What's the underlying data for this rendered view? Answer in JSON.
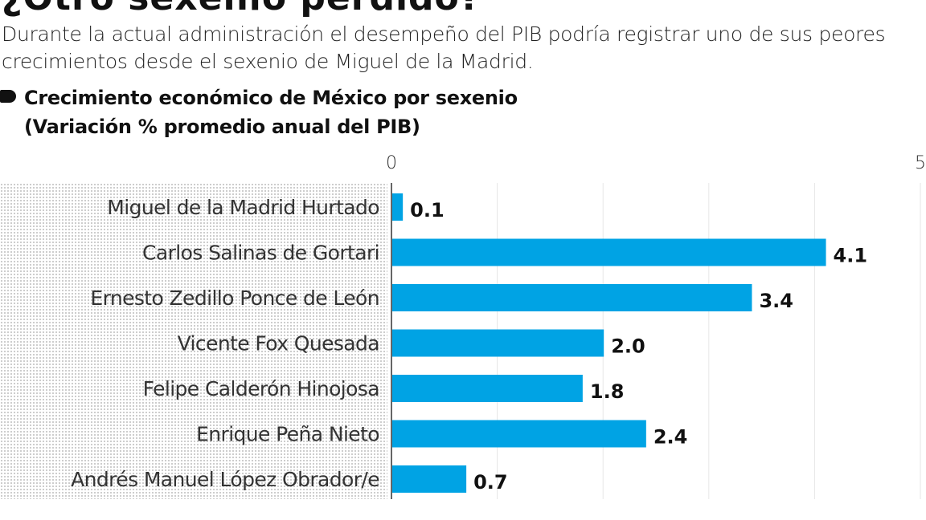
{
  "header": {
    "title": "¿Otro sexenio perdido?",
    "subtitle": "Durante la actual administración el desempeño del PIB podría registrar uno de sus peores crecimientos desde el sexenio de Miguel de la Madrid."
  },
  "chart_data": {
    "type": "bar",
    "orientation": "horizontal",
    "title": "Crecimiento económico de México por sexenio",
    "subtitle": "(Variación % promedio anual del PIB)",
    "categories": [
      "Miguel de la Madrid Hurtado",
      "Carlos Salinas de Gortari",
      "Ernesto Zedillo Ponce de León",
      "Vicente Fox Quesada",
      "Felipe Calderón Hinojosa",
      "Enrique Peña Nieto",
      "Andrés Manuel López Obrador/e"
    ],
    "values": [
      0.1,
      4.1,
      3.4,
      2.0,
      1.8,
      2.4,
      0.7
    ],
    "data_labels": [
      "0.1",
      "4.1",
      "3.4",
      "2.0",
      "1.8",
      "2.4",
      "0.7"
    ],
    "xlim": [
      0,
      5
    ],
    "x_tick_labels": [
      "0",
      "5"
    ],
    "grid": true,
    "bar_color": "#00a3e4"
  }
}
